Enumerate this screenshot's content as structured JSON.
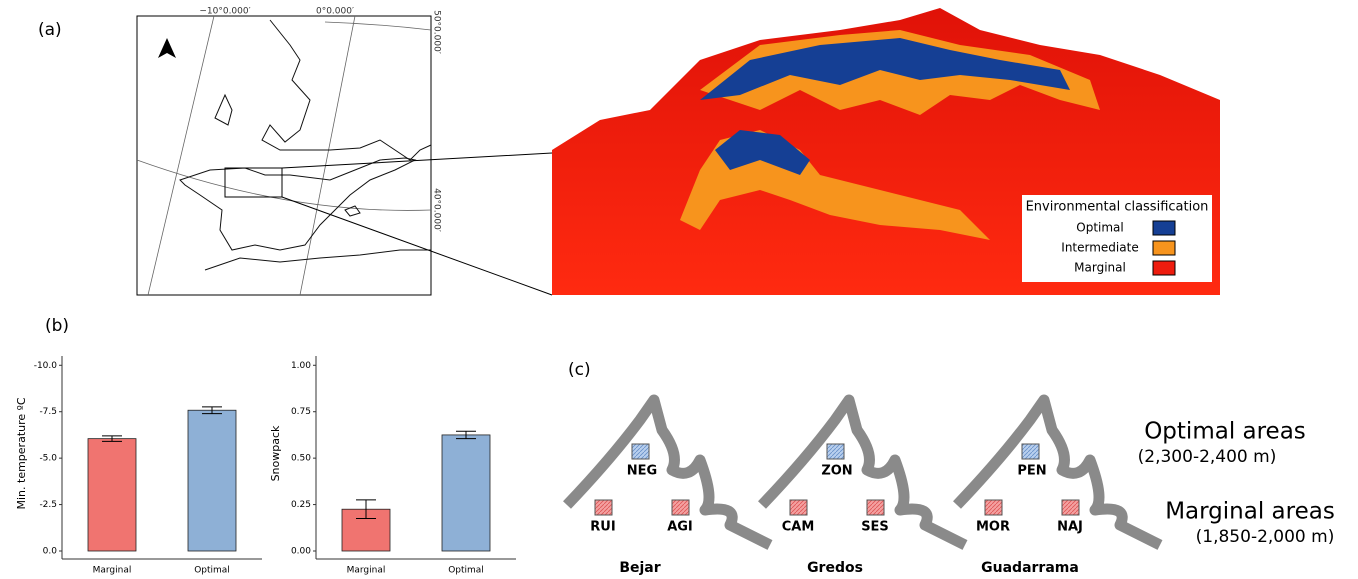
{
  "panel_labels": [
    "(a)",
    "(b)",
    "(c)"
  ],
  "map": {
    "coordinates": {
      "lon_west": "−10°0.000′",
      "lon_east": "0°0.000′",
      "lat_north": "50°0.000′",
      "lat_south": "40°0.000′"
    }
  },
  "terrain_legend": {
    "title": "Environmental classification",
    "items": [
      {
        "label": "Optimal",
        "color": "#153f94"
      },
      {
        "label": "Intermediate",
        "color": "#f7941d"
      },
      {
        "label": "Marginal",
        "color": "#ee1c0e"
      }
    ]
  },
  "diagram": {
    "optimal_title": "Optimal areas",
    "optimal_range": "(2,300-2,400 m)",
    "marginal_title": "Marginal areas",
    "marginal_range": "(1,850-2,000 m)",
    "mountains": [
      {
        "name": "Bejar",
        "optimal": "NEG",
        "marginal": [
          "RUI",
          "AGI"
        ]
      },
      {
        "name": "Gredos",
        "optimal": "ZON",
        "marginal": [
          "CAM",
          "SES"
        ]
      },
      {
        "name": "Guadarrama",
        "optimal": "PEN",
        "marginal": [
          "MOR",
          "NAJ"
        ]
      }
    ]
  },
  "chart_data": [
    {
      "type": "bar",
      "y_label": "Min. temperature ºC",
      "categories": [
        "Marginal",
        "Optimal"
      ],
      "values": [
        -6.05,
        -7.58
      ],
      "errors": [
        0.15,
        0.18
      ],
      "colors": [
        "#f07470",
        "#8eb0d6"
      ],
      "ylim": [
        0,
        -10.5
      ],
      "yticks": [
        {
          "value": 0,
          "label": "0.0"
        },
        -2.5,
        {
          "value": -5,
          "label": "-5.0"
        },
        -7.5,
        {
          "value": -10,
          "label": "-10.0"
        }
      ]
    },
    {
      "type": "bar",
      "y_label": "Snowpack",
      "categories": [
        "Marginal",
        "Optimal"
      ],
      "values": [
        0.225,
        0.625
      ],
      "errors": [
        0.05,
        0.02
      ],
      "colors": [
        "#f07470",
        "#8eb0d6"
      ],
      "ylim": [
        0,
        1.05
      ],
      "yticks": [
        {
          "value": 0,
          "label": "0.00"
        },
        0.25,
        {
          "value": 0.5,
          "label": "0.50"
        },
        0.75,
        {
          "value": 1,
          "label": "1.00"
        }
      ]
    }
  ]
}
